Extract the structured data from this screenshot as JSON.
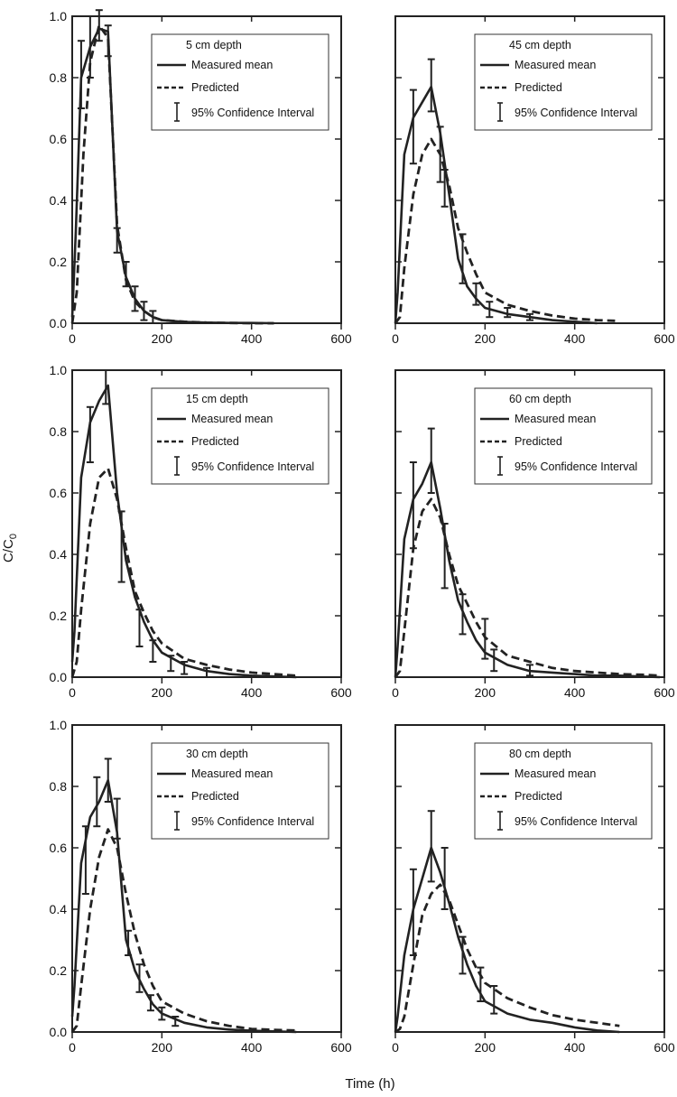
{
  "figure": {
    "xlabel": "Time (h)",
    "ylabel_main": "C/C",
    "ylabel_sub": "0",
    "legend": {
      "measured": "Measured mean",
      "predicted": "Predicted",
      "ci": "95% Confidence Interval"
    },
    "x_ticks": [
      "0",
      "200",
      "400",
      "600"
    ],
    "y_ticks": [
      "0.0",
      "0.2",
      "0.4",
      "0.6",
      "0.8",
      "1.0"
    ]
  },
  "chart_data": [
    {
      "type": "line",
      "panel": "5 cm depth",
      "xlim": [
        0,
        600
      ],
      "ylim": [
        0,
        1
      ],
      "series": [
        {
          "name": "Measured mean",
          "style": "solid",
          "x": [
            0,
            8,
            20,
            40,
            60,
            80,
            100,
            120,
            140,
            160,
            180,
            200,
            250,
            300,
            350,
            400,
            450
          ],
          "y": [
            0.02,
            0.3,
            0.8,
            0.9,
            0.96,
            0.95,
            0.3,
            0.15,
            0.08,
            0.04,
            0.02,
            0.01,
            0.004,
            0.002,
            0.001,
            0.001,
            0.0
          ]
        },
        {
          "name": "Predicted",
          "style": "dashed",
          "x": [
            0,
            10,
            25,
            40,
            60,
            80,
            100,
            120,
            140,
            160,
            180,
            200,
            250,
            300,
            350,
            400,
            450
          ],
          "y": [
            0.0,
            0.1,
            0.55,
            0.85,
            0.97,
            0.93,
            0.32,
            0.14,
            0.07,
            0.04,
            0.02,
            0.01,
            0.005,
            0.002,
            0.001,
            0.0,
            0.0
          ]
        }
      ],
      "error_bars": [
        {
          "x": 20,
          "low": 0.7,
          "high": 0.92
        },
        {
          "x": 40,
          "low": 0.8,
          "high": 1.0
        },
        {
          "x": 60,
          "low": 0.92,
          "high": 1.02
        },
        {
          "x": 80,
          "low": 0.87,
          "high": 0.97
        },
        {
          "x": 100,
          "low": 0.23,
          "high": 0.31
        },
        {
          "x": 120,
          "low": 0.12,
          "high": 0.2
        },
        {
          "x": 140,
          "low": 0.04,
          "high": 0.12
        },
        {
          "x": 160,
          "low": 0.01,
          "high": 0.07
        },
        {
          "x": 180,
          "low": 0.0,
          "high": 0.04
        }
      ]
    },
    {
      "type": "line",
      "panel": "45 cm depth",
      "xlim": [
        0,
        600
      ],
      "ylim": [
        0,
        1
      ],
      "series": [
        {
          "name": "Measured mean",
          "style": "solid",
          "x": [
            0,
            5,
            20,
            40,
            60,
            80,
            100,
            120,
            140,
            160,
            180,
            200,
            250,
            300,
            350,
            400,
            450
          ],
          "y": [
            0.0,
            0.1,
            0.55,
            0.67,
            0.72,
            0.77,
            0.62,
            0.42,
            0.21,
            0.12,
            0.08,
            0.05,
            0.03,
            0.02,
            0.01,
            0.005,
            0.0
          ]
        },
        {
          "name": "Predicted",
          "style": "dashed",
          "x": [
            0,
            10,
            20,
            40,
            60,
            80,
            100,
            120,
            140,
            160,
            180,
            200,
            250,
            300,
            350,
            400,
            450,
            490
          ],
          "y": [
            0.0,
            0.02,
            0.18,
            0.42,
            0.55,
            0.6,
            0.55,
            0.45,
            0.31,
            0.23,
            0.16,
            0.1,
            0.06,
            0.04,
            0.025,
            0.015,
            0.01,
            0.008
          ]
        }
      ],
      "error_bars": [
        {
          "x": 40,
          "low": 0.52,
          "high": 0.76
        },
        {
          "x": 80,
          "low": 0.69,
          "high": 0.86
        },
        {
          "x": 100,
          "low": 0.46,
          "high": 0.64
        },
        {
          "x": 110,
          "low": 0.38,
          "high": 0.5
        },
        {
          "x": 150,
          "low": 0.13,
          "high": 0.29
        },
        {
          "x": 180,
          "low": 0.06,
          "high": 0.13
        },
        {
          "x": 210,
          "low": 0.02,
          "high": 0.07
        },
        {
          "x": 250,
          "low": 0.02,
          "high": 0.05
        },
        {
          "x": 300,
          "low": 0.01,
          "high": 0.03
        }
      ]
    },
    {
      "type": "line",
      "panel": "15 cm depth",
      "xlim": [
        0,
        600
      ],
      "ylim": [
        0,
        1
      ],
      "series": [
        {
          "name": "Measured mean",
          "style": "solid",
          "x": [
            0,
            5,
            20,
            40,
            60,
            80,
            100,
            120,
            140,
            160,
            180,
            200,
            250,
            300,
            350,
            400,
            500
          ],
          "y": [
            0.05,
            0.15,
            0.65,
            0.83,
            0.9,
            0.95,
            0.6,
            0.38,
            0.26,
            0.18,
            0.12,
            0.08,
            0.04,
            0.02,
            0.01,
            0.005,
            0.0
          ]
        },
        {
          "name": "Predicted",
          "style": "dashed",
          "x": [
            0,
            10,
            20,
            40,
            60,
            80,
            100,
            120,
            140,
            160,
            180,
            200,
            250,
            300,
            350,
            400,
            450,
            500
          ],
          "y": [
            0.0,
            0.05,
            0.22,
            0.5,
            0.65,
            0.68,
            0.58,
            0.42,
            0.28,
            0.21,
            0.15,
            0.11,
            0.06,
            0.04,
            0.025,
            0.015,
            0.01,
            0.005
          ]
        }
      ],
      "error_bars": [
        {
          "x": 40,
          "low": 0.7,
          "high": 0.88
        },
        {
          "x": 75,
          "low": 0.89,
          "high": 1.0
        },
        {
          "x": 110,
          "low": 0.31,
          "high": 0.54
        },
        {
          "x": 150,
          "low": 0.1,
          "high": 0.22
        },
        {
          "x": 180,
          "low": 0.05,
          "high": 0.12
        },
        {
          "x": 220,
          "low": 0.02,
          "high": 0.07
        },
        {
          "x": 250,
          "low": 0.01,
          "high": 0.05
        },
        {
          "x": 300,
          "low": 0.0,
          "high": 0.03
        }
      ]
    },
    {
      "type": "line",
      "panel": "60 cm depth",
      "xlim": [
        0,
        600
      ],
      "ylim": [
        0,
        1
      ],
      "series": [
        {
          "name": "Measured mean",
          "style": "solid",
          "x": [
            0,
            5,
            20,
            40,
            60,
            80,
            100,
            120,
            140,
            160,
            180,
            200,
            250,
            300,
            350,
            400,
            450,
            500,
            550,
            590
          ],
          "y": [
            0.0,
            0.1,
            0.45,
            0.58,
            0.63,
            0.7,
            0.55,
            0.38,
            0.25,
            0.18,
            0.12,
            0.08,
            0.04,
            0.02,
            0.015,
            0.01,
            0.005,
            0.005,
            0.002,
            0.0
          ]
        },
        {
          "name": "Predicted",
          "style": "dashed",
          "x": [
            0,
            10,
            20,
            40,
            60,
            80,
            100,
            120,
            140,
            160,
            180,
            200,
            250,
            300,
            350,
            400,
            450,
            500,
            550,
            590
          ],
          "y": [
            0.0,
            0.02,
            0.15,
            0.42,
            0.54,
            0.58,
            0.52,
            0.4,
            0.3,
            0.24,
            0.18,
            0.13,
            0.07,
            0.05,
            0.03,
            0.02,
            0.015,
            0.01,
            0.008,
            0.005
          ]
        }
      ],
      "error_bars": [
        {
          "x": 40,
          "low": 0.42,
          "high": 0.7
        },
        {
          "x": 80,
          "low": 0.6,
          "high": 0.81
        },
        {
          "x": 110,
          "low": 0.29,
          "high": 0.5
        },
        {
          "x": 150,
          "low": 0.14,
          "high": 0.27
        },
        {
          "x": 200,
          "low": 0.06,
          "high": 0.19
        },
        {
          "x": 220,
          "low": 0.02,
          "high": 0.09
        },
        {
          "x": 300,
          "low": 0.005,
          "high": 0.04
        }
      ]
    },
    {
      "type": "line",
      "panel": "30 cm depth",
      "xlim": [
        0,
        600
      ],
      "ylim": [
        0,
        1
      ],
      "series": [
        {
          "name": "Measured mean",
          "style": "solid",
          "x": [
            0,
            5,
            20,
            40,
            60,
            80,
            100,
            120,
            140,
            160,
            180,
            200,
            250,
            300,
            350,
            400,
            500
          ],
          "y": [
            0.05,
            0.15,
            0.55,
            0.7,
            0.75,
            0.82,
            0.65,
            0.3,
            0.2,
            0.14,
            0.09,
            0.06,
            0.03,
            0.015,
            0.008,
            0.004,
            0.0
          ]
        },
        {
          "name": "Predicted",
          "style": "dashed",
          "x": [
            0,
            10,
            20,
            40,
            60,
            80,
            100,
            120,
            140,
            160,
            180,
            200,
            250,
            300,
            350,
            400,
            450,
            500
          ],
          "y": [
            0.0,
            0.02,
            0.15,
            0.4,
            0.57,
            0.66,
            0.6,
            0.45,
            0.32,
            0.22,
            0.15,
            0.1,
            0.06,
            0.035,
            0.02,
            0.01,
            0.007,
            0.005
          ]
        }
      ],
      "error_bars": [
        {
          "x": 30,
          "low": 0.45,
          "high": 0.67
        },
        {
          "x": 55,
          "low": 0.67,
          "high": 0.83
        },
        {
          "x": 80,
          "low": 0.75,
          "high": 0.89
        },
        {
          "x": 100,
          "low": 0.63,
          "high": 0.76
        },
        {
          "x": 125,
          "low": 0.25,
          "high": 0.33
        },
        {
          "x": 150,
          "low": 0.13,
          "high": 0.22
        },
        {
          "x": 175,
          "low": 0.07,
          "high": 0.12
        },
        {
          "x": 200,
          "low": 0.04,
          "high": 0.08
        },
        {
          "x": 230,
          "low": 0.02,
          "high": 0.05
        }
      ]
    },
    {
      "type": "line",
      "panel": "80 cm depth",
      "xlim": [
        0,
        600
      ],
      "ylim": [
        0,
        1
      ],
      "series": [
        {
          "name": "Measured mean",
          "style": "solid",
          "x": [
            0,
            5,
            20,
            40,
            60,
            80,
            100,
            120,
            140,
            160,
            180,
            200,
            250,
            300,
            350,
            400,
            450,
            500
          ],
          "y": [
            0.0,
            0.05,
            0.25,
            0.4,
            0.5,
            0.6,
            0.52,
            0.42,
            0.31,
            0.22,
            0.15,
            0.1,
            0.06,
            0.04,
            0.03,
            0.015,
            0.005,
            0.0
          ]
        },
        {
          "name": "Predicted",
          "style": "dashed",
          "x": [
            0,
            10,
            20,
            40,
            60,
            80,
            100,
            120,
            140,
            160,
            180,
            200,
            250,
            300,
            350,
            400,
            450,
            500
          ],
          "y": [
            0.0,
            0.01,
            0.05,
            0.22,
            0.38,
            0.45,
            0.48,
            0.43,
            0.35,
            0.27,
            0.21,
            0.16,
            0.11,
            0.08,
            0.055,
            0.04,
            0.03,
            0.02
          ]
        }
      ],
      "error_bars": [
        {
          "x": 40,
          "low": 0.25,
          "high": 0.53
        },
        {
          "x": 80,
          "low": 0.49,
          "high": 0.72
        },
        {
          "x": 110,
          "low": 0.4,
          "high": 0.6
        },
        {
          "x": 150,
          "low": 0.19,
          "high": 0.31
        },
        {
          "x": 190,
          "low": 0.1,
          "high": 0.21
        },
        {
          "x": 220,
          "low": 0.06,
          "high": 0.15
        }
      ]
    }
  ]
}
